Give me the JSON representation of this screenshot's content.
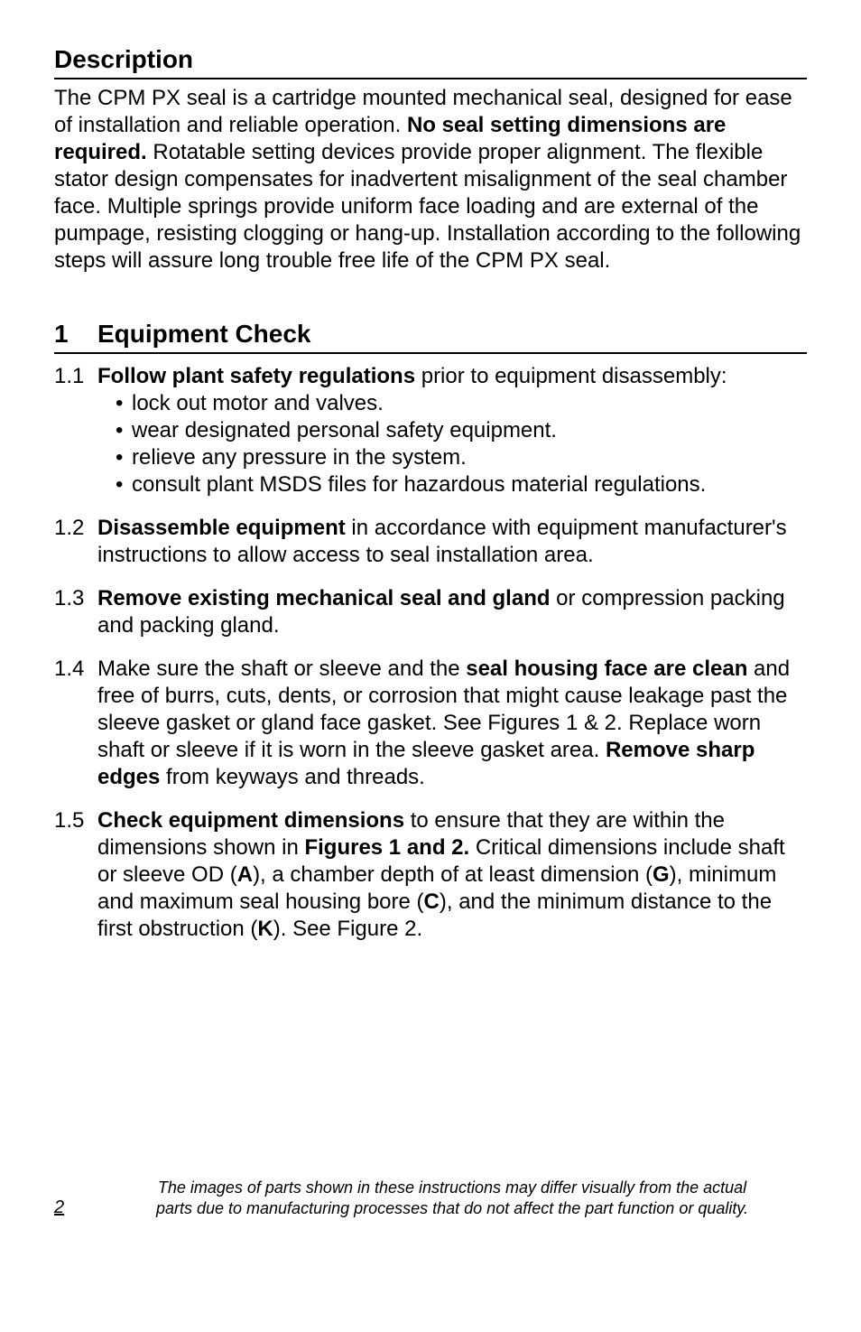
{
  "description": {
    "title": "Description",
    "para_parts": {
      "t1": "The CPM PX seal is a cartridge mounted mechanical seal, designed for ease of installation and reliable operation. ",
      "b1": "No seal setting dimensions are required.",
      "t2": " Rotatable setting devices provide proper alignment. The flexible stator design compensates for inadvertent misalignment of the seal chamber face. Multiple springs provide uniform face loading and are external of the pumpage, resisting clogging or hang-up. Installation according to the following steps will assure long trouble free life of the CPM PX seal."
    }
  },
  "equipment": {
    "num": "1",
    "title": "Equipment Check",
    "items": {
      "i1": {
        "num": "1.1",
        "lead_bold": "Follow plant safety regulations",
        "lead_rest": " prior to equipment disassembly:",
        "bullets": [
          "lock out motor and valves.",
          "wear designated personal safety equipment.",
          "relieve any pressure in the system.",
          "consult plant MSDS files for hazardous material regulations."
        ]
      },
      "i2": {
        "num": "1.2",
        "b1": "Disassemble equipment",
        "t1": " in accordance with equipment manufacturer's instructions to allow access to seal installation area."
      },
      "i3": {
        "num": "1.3",
        "b1": "Remove existing mechanical seal and gland",
        "t1": " or compression packing and packing gland."
      },
      "i4": {
        "num": "1.4",
        "t1": "Make sure the shaft or sleeve and the ",
        "b1": "seal housing face are clean",
        "t2": " and free of burrs, cuts, dents, or corrosion that might cause leakage past the sleeve gasket or gland face gasket. See Figures 1 & 2. Replace worn shaft or sleeve if it is worn in the sleeve gasket area. ",
        "b2": "Remove sharp edges",
        "t3": " from keyways and threads."
      },
      "i5": {
        "num": "1.5",
        "b1": "Check equipment dimensions",
        "t1": " to ensure that they are within the dimensions shown in ",
        "b2": "Figures 1 and 2.",
        "t2": " Critical dimensions include shaft or sleeve OD (",
        "b3": "A",
        "t3": "), a chamber depth of at least dimension (",
        "b4": "G",
        "t4": "), minimum and maximum seal housing bore (",
        "b5": "C",
        "t5": "), and the minimum distance to the first obstruction (",
        "b6": "K",
        "t6": "). See Figure 2."
      }
    }
  },
  "footer": {
    "page": "2",
    "note_line1": "The images of parts shown in these instructions may differ visually from the actual",
    "note_line2": "parts due to manufacturing processes that do not affect the part function or quality."
  }
}
